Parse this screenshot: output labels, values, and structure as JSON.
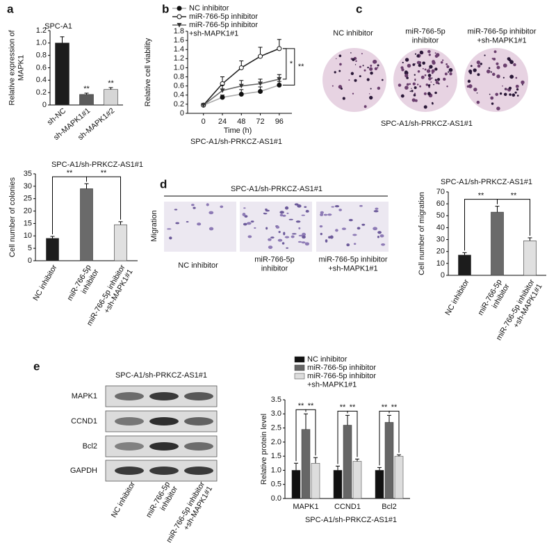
{
  "panel_labels": [
    "a",
    "b",
    "c",
    "d",
    "e"
  ],
  "chart_data": [
    {
      "type": "bar",
      "title": "SPC-A1",
      "y_label": "Relative expression of\nMAPK1",
      "categories": [
        "sh-NC",
        "sh-MAPK1#1",
        "sh-MAPK1#2"
      ],
      "values": [
        1.0,
        0.17,
        0.25
      ],
      "errors": [
        0.1,
        0.02,
        0.03
      ],
      "colors": [
        "#1c1c1c",
        "#5c5c5c",
        "#d6d6d6"
      ],
      "significance": [
        null,
        "**",
        "**"
      ],
      "ylim": [
        0,
        1.2
      ],
      "yticks": [
        0,
        0.2,
        0.4,
        0.6,
        0.8,
        {
          "value": 1,
          "label": "1.0"
        },
        1.2
      ]
    },
    {
      "type": "line",
      "y_label": "Relative cell viability",
      "x_label": "Time (h)",
      "subtitle": "SPC-A1/sh-PRKCZ-AS1#1",
      "x": [
        0,
        24,
        48,
        72,
        96
      ],
      "xlim": [
        -20,
        112
      ],
      "xticks": [
        0,
        24,
        48,
        72,
        96
      ],
      "ylim": [
        0,
        1.8
      ],
      "yticks": [
        0,
        0.2,
        0.4,
        0.6,
        0.8,
        {
          "value": 1,
          "label": "1.0"
        },
        1.2,
        1.4,
        1.6,
        1.8
      ],
      "series": [
        {
          "name": "NC inhibitor",
          "color": "#aaaaaa",
          "marker": "circle",
          "values": [
            0.18,
            0.35,
            0.42,
            0.48,
            0.62
          ],
          "errors": [
            0.02,
            0.05,
            0.1,
            0.1,
            0.08
          ]
        },
        {
          "name": "miR-766-5p inhibitor",
          "color": "#222222",
          "marker": "open-circle",
          "values": [
            0.18,
            0.65,
            1.0,
            1.25,
            1.42
          ],
          "errors": [
            0.02,
            0.15,
            0.15,
            0.2,
            0.2
          ]
        },
        {
          "name": "miR-766-5p inhibitor\n+sh-MAPK1#1",
          "color": "#666666",
          "marker": "triangle",
          "values": [
            0.18,
            0.5,
            0.6,
            0.65,
            0.75
          ],
          "errors": [
            0.02,
            0.12,
            0.12,
            0.1,
            0.1
          ]
        }
      ],
      "comparisons": [
        "*",
        "**"
      ]
    },
    {
      "type": "bar",
      "title": "SPC-A1/sh-PRKCZ-AS1#1",
      "y_label": "Cell number of colonies",
      "categories": [
        "NC inhibitor",
        "miR-766-5p\ninhibitor",
        "miR-766-5p inhibitor\n+sh-MAPK1#1"
      ],
      "values": [
        9,
        29,
        14.5
      ],
      "errors": [
        0.8,
        2,
        1.2
      ],
      "colors": [
        "#1c1c1c",
        "#6a6a6a",
        "#e0e0e0"
      ],
      "comparisons": [
        "**",
        "**"
      ],
      "ylim": [
        0,
        35
      ],
      "yticks": [
        0,
        5,
        10,
        15,
        20,
        25,
        30,
        35
      ]
    },
    {
      "type": "bar",
      "title": "SPC-A1/sh-PRKCZ-AS1#1",
      "y_label": "Cell number of migration",
      "categories": [
        "NC inhibitor",
        "miR-766-5p\ninhibitor",
        "miR-766-5p inhibitor\n+sh-MAPK1#1"
      ],
      "values": [
        17,
        53,
        29
      ],
      "errors": [
        2,
        5,
        2.5
      ],
      "colors": [
        "#1c1c1c",
        "#6a6a6a",
        "#e0e0e0"
      ],
      "comparisons": [
        "**",
        "**"
      ],
      "ylim": [
        0,
        70
      ],
      "yticks": [
        0,
        10,
        20,
        30,
        40,
        50,
        60,
        70
      ]
    },
    {
      "type": "grouped_bar",
      "y_label": "Relative protein level",
      "x_label": "SPC-A1/sh-PRKCZ-AS1#1",
      "categories": [
        "MAPK1",
        "CCND1",
        "Bcl2"
      ],
      "series": [
        {
          "name": "NC inhibitor",
          "color": "#111111",
          "values": [
            1,
            1,
            1
          ],
          "errors": [
            0.25,
            0.15,
            0.1
          ]
        },
        {
          "name": "miR-766-5p inhibitor",
          "color": "#666666",
          "values": [
            2.45,
            2.6,
            2.7
          ],
          "errors": [
            0.55,
            0.35,
            0.25
          ]
        },
        {
          "name": "miR-766-5p inhibitor\n+sh-MAPK1#1",
          "color": "#dddddd",
          "values": [
            1.25,
            1.32,
            1.5
          ],
          "errors": [
            0.2,
            0.08,
            0.05
          ]
        }
      ],
      "comparisons": [
        "**",
        "**",
        "**",
        "**",
        "**",
        "**"
      ],
      "ylim": [
        0,
        3.5
      ],
      "yticks": [
        {
          "value": 0,
          "label": "0.0"
        },
        0.5,
        {
          "value": 1,
          "label": "1.0"
        },
        1.5,
        {
          "value": 2,
          "label": "2.0"
        },
        2.5,
        {
          "value": 3,
          "label": "3.0"
        },
        3.5
      ]
    }
  ],
  "colony_assay": {
    "labels": [
      "NC inhibitor",
      "miR-766-5p\ninhibitor",
      "miR-766-5p inhibitor\n+sh-MAPK1#1"
    ],
    "caption": "SPC-A1/sh-PRKCZ-AS1#1"
  },
  "migration_assay": {
    "title": "SPC-A1/sh-PRKCZ-AS1#1",
    "row_label": "Migration",
    "labels": [
      "NC inhibitor",
      "miR-766-5p\ninhibitor",
      "miR-766-5p inhibitor\n+sh-MAPK1#1"
    ]
  },
  "western_blot": {
    "title": "SPC-A1/sh-PRKCZ-AS1#1",
    "proteins": [
      "MAPK1",
      "CCND1",
      "Bcl2",
      "GAPDH"
    ],
    "lanes": [
      "NC inhibitor",
      "miR-766-5p\ninhibitor",
      "miR-766-5p inhibitor\n+sh-MAPK1#1"
    ]
  }
}
